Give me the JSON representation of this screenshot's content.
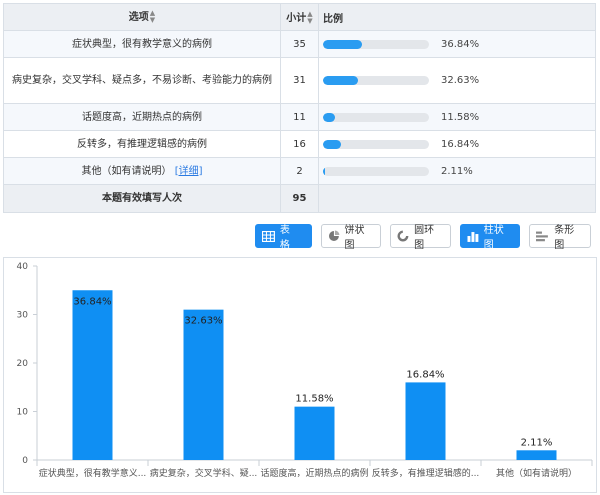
{
  "table": {
    "headers": {
      "option": "选项",
      "count": "小计",
      "ratio": "比例"
    },
    "rows": [
      {
        "option": "症状典型，很有教学意义的病例",
        "count": "35",
        "percent": "36.84%",
        "fraction": 0.3684
      },
      {
        "option": "病史复杂，交叉学科、疑点多，不易诊断、考验能力的病例",
        "count": "31",
        "percent": "32.63%",
        "fraction": 0.3263
      },
      {
        "option": "话题度高，近期热点的病例",
        "count": "11",
        "percent": "11.58%",
        "fraction": 0.1158
      },
      {
        "option": "反转多，有推理逻辑感的病例",
        "count": "16",
        "percent": "16.84%",
        "fraction": 0.1684
      },
      {
        "option": "其他（如有请说明）",
        "detail_link": "[详细]",
        "count": "2",
        "percent": "2.11%",
        "fraction": 0.0211
      }
    ],
    "total": {
      "label": "本题有效填写人次",
      "count": "95"
    }
  },
  "toolbar": {
    "table_label": "表格",
    "pie_label": "饼状图",
    "donut_label": "圆环图",
    "column_label": "柱状图",
    "bar_label": "条形图",
    "active": [
      "table",
      "column"
    ]
  },
  "colors": {
    "accent": "#1f8cf0",
    "bar": "#0f8ff3",
    "track": "#e3e6ea"
  },
  "chart_data": {
    "type": "bar",
    "categories": [
      "症状典型，很有教学意义...",
      "病史复杂，交叉学科、疑...",
      "话题度高，近期热点的病例",
      "反转多，有推理逻辑感的...",
      "其他（如有请说明）"
    ],
    "values": [
      35,
      31,
      11,
      16,
      2
    ],
    "data_labels": [
      "36.84%",
      "32.63%",
      "11.58%",
      "16.84%",
      "2.11%"
    ],
    "yticks": [
      0,
      10,
      20,
      30,
      40
    ],
    "ylim": [
      0,
      40
    ],
    "grid": false,
    "legend": "none"
  }
}
